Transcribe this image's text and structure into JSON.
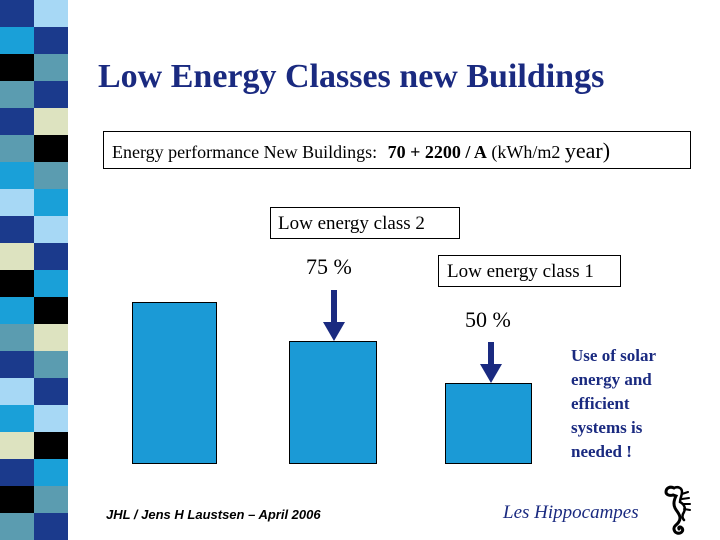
{
  "slide": {
    "title": "Low Energy Classes new Buildings",
    "formula": {
      "label": "Energy performance New Buildings:",
      "expression": "70 + 2200 / A",
      "unit": "(kWh/m2",
      "unit_end": "year)"
    },
    "class2": {
      "label": "Low energy class 2",
      "percent": "75 %"
    },
    "class1": {
      "label": "Low energy class 1",
      "percent": "50 %"
    },
    "bars": [
      {
        "name": "reference",
        "relative_value": 100
      },
      {
        "name": "low-energy-class-2",
        "relative_value": 75
      },
      {
        "name": "low-energy-class-1",
        "relative_value": 50
      }
    ],
    "note_lines": [
      "Use of solar",
      "energy and",
      "efficient",
      "systems is",
      "needed !"
    ],
    "footer_left": "JHL  / Jens H Laustsen – April 2006",
    "footer_right": "Les Hippocampes",
    "logo_icon": "seahorse-icon",
    "accent_color": "#1b9ad6",
    "title_color": "#1a2a80"
  }
}
